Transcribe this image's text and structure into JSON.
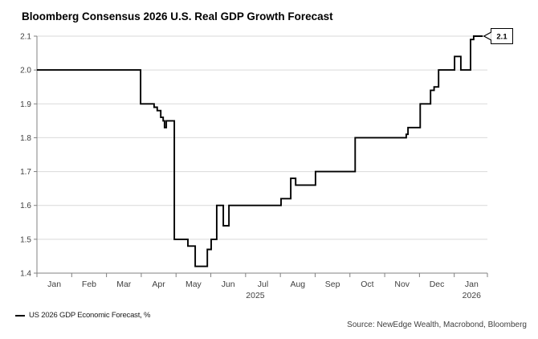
{
  "title": "Bloomberg Consensus 2026 U.S. Real GDP Growth Forecast",
  "legend": {
    "label": "US 2026 GDP Economic Forecast, %"
  },
  "source_note": "Source: NewEdge Wealth, Macrobond, Bloomberg",
  "chart_data": {
    "type": "line",
    "step": true,
    "title": "Bloomberg Consensus 2026 U.S. Real GDP Growth Forecast",
    "ylim": [
      1.4,
      2.1
    ],
    "y_tick_labels": [
      "1.4",
      "1.5",
      "1.6",
      "1.7",
      "1.8",
      "1.9",
      "2.0",
      "2.1"
    ],
    "x_month_labels": [
      "Jan",
      "Feb",
      "Mar",
      "Apr",
      "May",
      "Jun",
      "Jul",
      "Aug",
      "Sep",
      "Oct",
      "Nov",
      "Dec",
      "Jan"
    ],
    "x_year_labels": [
      {
        "label": "2025",
        "month_pos": 6.28
      },
      {
        "label": "2026",
        "month_pos": 12.5
      }
    ],
    "grid": "horizontal",
    "legend_position": "bottom-left",
    "series": [
      {
        "name": "US 2026 GDP Economic Forecast, %",
        "color": "#000000",
        "points_month_value": [
          [
            0.0,
            2.0
          ],
          [
            2.98,
            1.9
          ],
          [
            3.37,
            1.89
          ],
          [
            3.46,
            1.88
          ],
          [
            3.56,
            1.86
          ],
          [
            3.63,
            1.85
          ],
          [
            3.67,
            1.83
          ],
          [
            3.72,
            1.85
          ],
          [
            3.95,
            1.5
          ],
          [
            4.34,
            1.48
          ],
          [
            4.55,
            1.42
          ],
          [
            4.9,
            1.47
          ],
          [
            5.01,
            1.5
          ],
          [
            5.17,
            1.6
          ],
          [
            5.36,
            1.54
          ],
          [
            5.52,
            1.6
          ],
          [
            7.02,
            1.62
          ],
          [
            7.3,
            1.68
          ],
          [
            7.44,
            1.66
          ],
          [
            8.01,
            1.7
          ],
          [
            9.15,
            1.8
          ],
          [
            10.62,
            1.81
          ],
          [
            10.67,
            1.83
          ],
          [
            11.02,
            1.9
          ],
          [
            11.32,
            1.94
          ],
          [
            11.42,
            1.95
          ],
          [
            11.55,
            2.0
          ],
          [
            12.01,
            2.04
          ],
          [
            12.19,
            2.0
          ],
          [
            12.47,
            2.09
          ],
          [
            12.56,
            2.1
          ],
          [
            12.82,
            2.1
          ]
        ]
      }
    ],
    "end_callout": {
      "label": "2.1",
      "value": 2.1
    },
    "colors": {
      "line": "#000000",
      "grid": "#d9d9d9",
      "axis": "#808080",
      "tick_label": "#404040",
      "background": "#ffffff"
    }
  }
}
